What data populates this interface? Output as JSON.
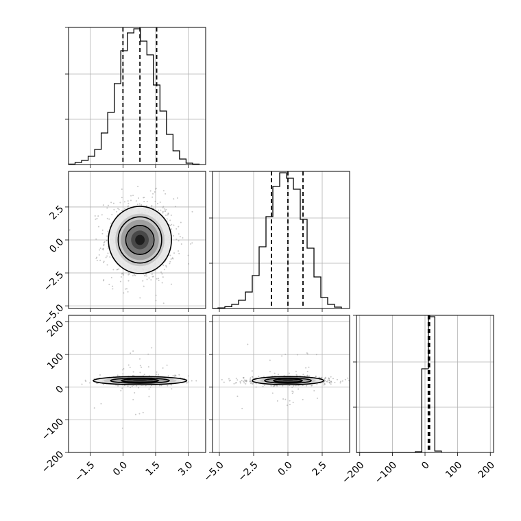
{
  "chart_data": {
    "type": "corner",
    "title": "",
    "params": [
      "",
      "",
      ""
    ],
    "colors": {
      "line": "#000000",
      "grid": "#b0b0b0",
      "scatter": "#999999",
      "density": [
        "#e6e6e6",
        "#c4c4c4",
        "#9a9a9a",
        "#6e6e6e",
        "#444444",
        "#1a1a1a"
      ]
    },
    "grid": true,
    "panels": [
      {
        "id": "hist-0",
        "type": "histogram",
        "row": 0,
        "col": 0,
        "xlim": [
          -2.5,
          3.8
        ],
        "ylim": [
          0,
          1
        ],
        "x_ticks": [
          -1.5,
          0.0,
          1.5,
          3.0
        ],
        "y_ticks": [
          0.33,
          0.66,
          1.0
        ],
        "bin_edges": [
          -2.5,
          -2.2,
          -1.9,
          -1.6,
          -1.3,
          -1.0,
          -0.7,
          -0.4,
          -0.1,
          0.2,
          0.5,
          0.8,
          1.1,
          1.4,
          1.7,
          2.0,
          2.3,
          2.6,
          2.9,
          3.2,
          3.5
        ],
        "counts": [
          0.003,
          0.015,
          0.03,
          0.06,
          0.11,
          0.23,
          0.38,
          0.59,
          0.83,
          0.96,
          0.99,
          0.9,
          0.8,
          0.58,
          0.39,
          0.22,
          0.1,
          0.04,
          0.01,
          0.003
        ],
        "quantiles": [
          0.0,
          0.78,
          1.55
        ]
      },
      {
        "id": "hist-1",
        "type": "histogram",
        "row": 1,
        "col": 1,
        "xlim": [
          -5.5,
          4.5
        ],
        "ylim": [
          0,
          1
        ],
        "x_ticks": [
          -5.0,
          -2.5,
          0.0,
          2.5
        ],
        "y_ticks": [
          0.33,
          0.66,
          1.0
        ],
        "bin_edges": [
          -5.1,
          -4.6,
          -4.1,
          -3.6,
          -3.1,
          -2.6,
          -2.1,
          -1.6,
          -1.1,
          -0.6,
          -0.1,
          0.4,
          0.9,
          1.4,
          1.9,
          2.4,
          2.9,
          3.4,
          3.9
        ],
        "counts": [
          0.004,
          0.013,
          0.03,
          0.06,
          0.12,
          0.24,
          0.45,
          0.67,
          0.89,
          0.99,
          0.95,
          0.87,
          0.65,
          0.44,
          0.23,
          0.08,
          0.03,
          0.01
        ],
        "quantiles": [
          -1.2,
          0.0,
          1.1
        ]
      },
      {
        "id": "hist-2",
        "type": "histogram",
        "row": 2,
        "col": 2,
        "xlim": [
          -210,
          210
        ],
        "ylim": [
          0,
          1
        ],
        "x_ticks": [
          -200,
          -100,
          0,
          100,
          200
        ],
        "y_ticks": [
          0.33,
          0.66,
          1.0
        ],
        "bin_edges": [
          -30,
          -10,
          10,
          30,
          50
        ],
        "counts": [
          0.005,
          0.61,
          0.99,
          0.01
        ],
        "quantiles": [
          10,
          12,
          14
        ]
      },
      {
        "id": "pair-1-0",
        "type": "density",
        "row": 1,
        "col": 0,
        "xlim": [
          -2.5,
          3.8
        ],
        "ylim": [
          -5.2,
          5.2
        ],
        "x_ticks": [
          -1.5,
          0.0,
          1.5,
          3.0
        ],
        "y_ticks": [
          -5.0,
          -2.5,
          0.0,
          2.5
        ],
        "center": [
          0.78,
          0.0
        ],
        "spread": [
          0.8,
          1.6
        ],
        "contour_levels": [
          {
            "rx": 1.45,
            "ry": 2.55
          },
          {
            "rx": 1.0,
            "ry": 1.75
          },
          {
            "rx": 0.65,
            "ry": 1.1
          }
        ]
      },
      {
        "id": "pair-2-0",
        "type": "density",
        "row": 2,
        "col": 0,
        "xlim": [
          -2.5,
          3.8
        ],
        "ylim": [
          -200,
          220
        ],
        "x_ticks": [
          -1.5,
          0.0,
          1.5,
          3.0
        ],
        "y_ticks": [
          -200,
          -100,
          0,
          100,
          200
        ],
        "center": [
          0.78,
          20
        ],
        "spread": [
          0.9,
          6
        ],
        "contour_levels": [
          {
            "rx": 2.15,
            "ry": 12.5
          },
          {
            "rx": 1.35,
            "ry": 8.0
          },
          {
            "rx": 0.85,
            "ry": 5.0
          }
        ]
      },
      {
        "id": "pair-2-1",
        "type": "density",
        "row": 2,
        "col": 1,
        "xlim": [
          -5.5,
          4.5
        ],
        "ylim": [
          -200,
          220
        ],
        "x_ticks": [
          -5.0,
          -2.5,
          0.0,
          2.5
        ],
        "y_ticks": [
          -200,
          -100,
          0,
          100,
          200
        ],
        "center": [
          0.0,
          20
        ],
        "spread": [
          1.5,
          6
        ],
        "contour_levels": [
          {
            "rx": 2.6,
            "ry": 12.5
          },
          {
            "rx": 1.7,
            "ry": 8.0
          },
          {
            "rx": 1.05,
            "ry": 5.0
          }
        ]
      }
    ],
    "tick_labels": {
      "col0_x": [
        "−1.5",
        "0.0",
        "1.5",
        "3.0"
      ],
      "col1_x": [
        "−5.0",
        "−2.5",
        "0.0",
        "2.5"
      ],
      "col2_x": [
        "−200",
        "−100",
        "0",
        "100",
        "200"
      ],
      "row1_y": [
        "−5.0",
        "−2.5",
        "0.0",
        "2.5"
      ],
      "row2_y": [
        "−200",
        "−100",
        "0",
        "100",
        "200"
      ]
    }
  }
}
